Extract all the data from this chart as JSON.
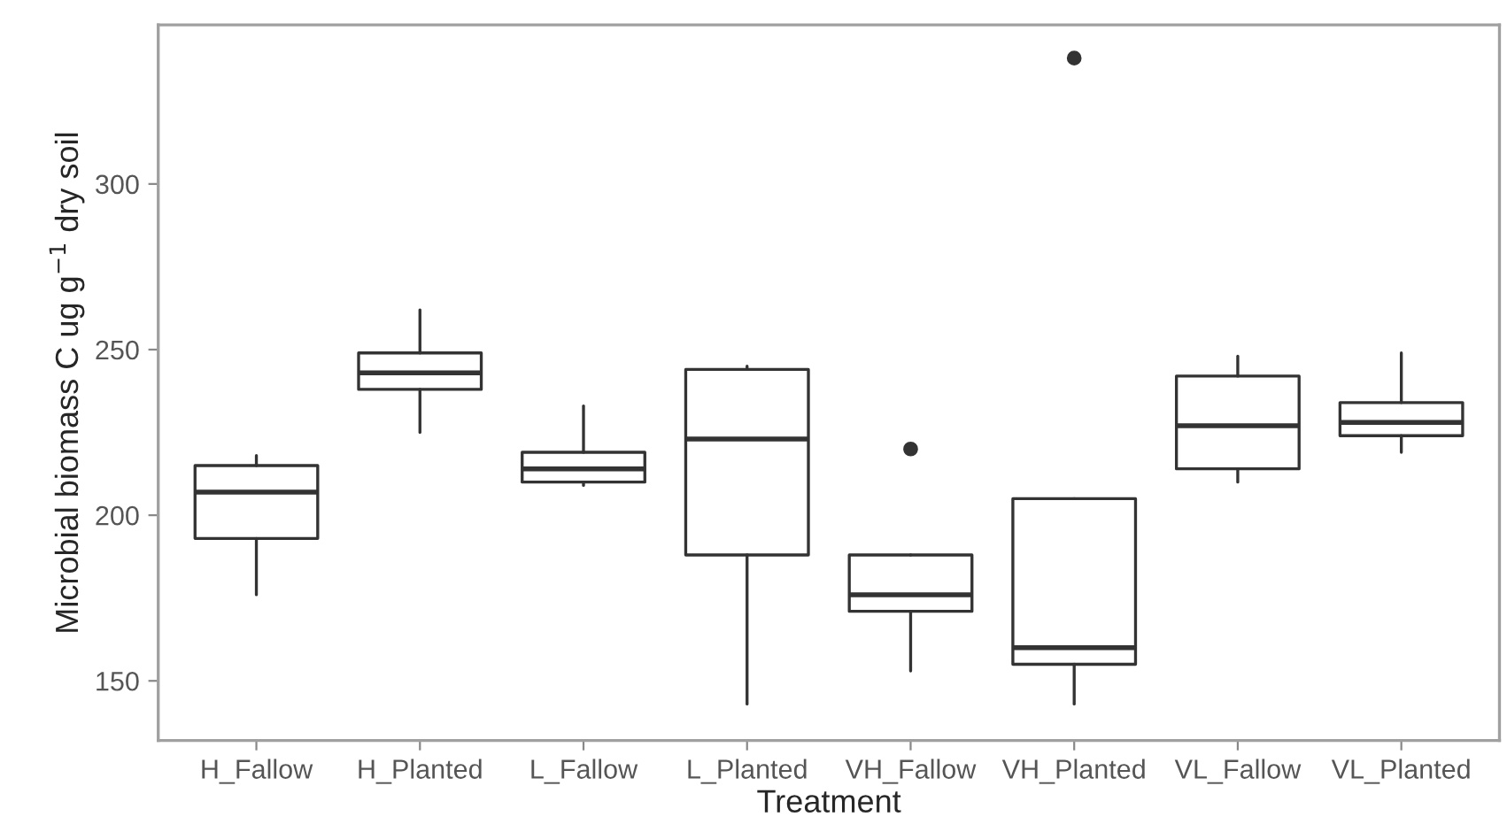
{
  "chart_data": {
    "type": "box",
    "xlabel": "Treatment",
    "ylabel": "Microbial biomass C ug g$^{−1}$ dry soil",
    "categories": [
      "H_Fallow",
      "H_Planted",
      "L_Fallow",
      "L_Planted",
      "VH_Fallow",
      "VH_Planted",
      "VL_Fallow",
      "VL_Planted"
    ],
    "boxes": [
      {
        "low": 176,
        "q1": 193,
        "median": 207,
        "q3": 215,
        "high": 218
      },
      {
        "low": 225,
        "q1": 238,
        "median": 243,
        "q3": 249,
        "high": 262
      },
      {
        "low": 209,
        "q1": 210,
        "median": 214,
        "q3": 219,
        "high": 233
      },
      {
        "low": 143,
        "q1": 188,
        "median": 223,
        "q3": 244,
        "high": 245
      },
      {
        "low": 153,
        "q1": 171,
        "median": 176,
        "q3": 188,
        "high": 188,
        "outliers": [
          220
        ]
      },
      {
        "low": 143,
        "q1": 155,
        "median": 160,
        "q3": 205,
        "high": 205,
        "outliers": [
          338
        ]
      },
      {
        "low": 210,
        "q1": 214,
        "median": 227,
        "q3": 242,
        "high": 248
      },
      {
        "low": 219,
        "q1": 224,
        "median": 228,
        "q3": 234,
        "high": 249
      }
    ],
    "ylim": [
      132,
      348
    ],
    "yticks": [
      150,
      200,
      250,
      300
    ],
    "grid": false
  }
}
